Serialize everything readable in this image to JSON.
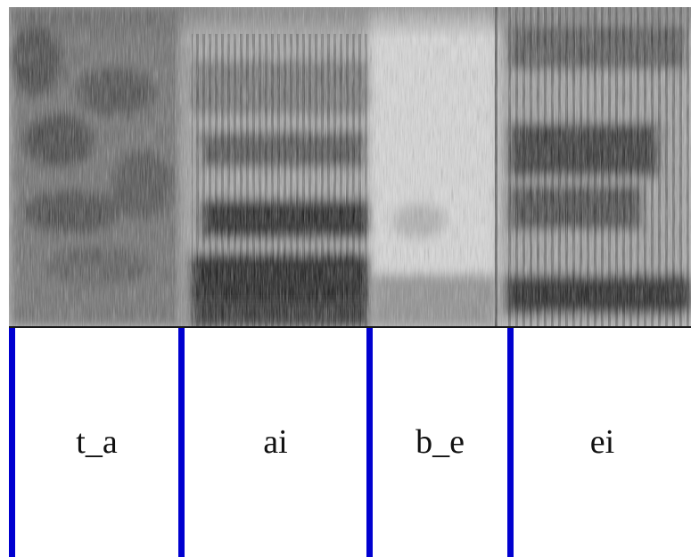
{
  "segments": [
    {
      "label": "t_a"
    },
    {
      "label": "ai"
    },
    {
      "label": "b_e"
    },
    {
      "label": "ei"
    }
  ],
  "colors": {
    "boundary": "#0000d0",
    "baseline": "#1a1a1a",
    "spectrogram_background": "#c9c9c9"
  }
}
